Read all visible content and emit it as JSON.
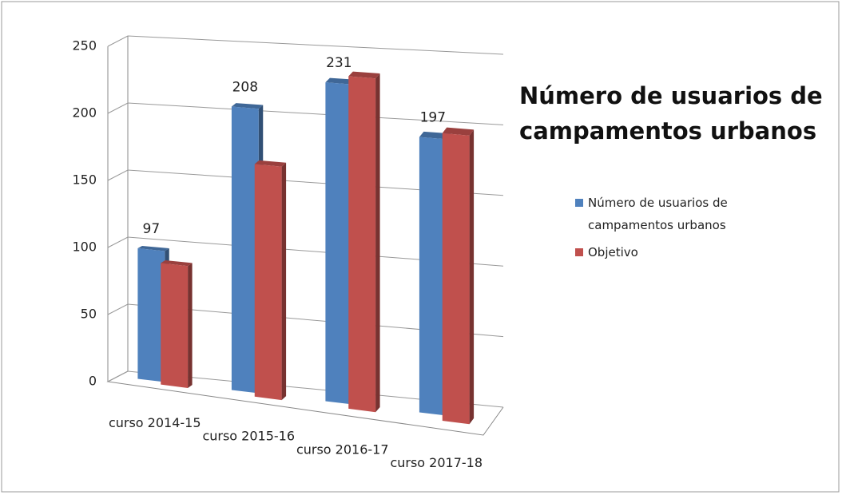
{
  "chart_data": {
    "type": "bar3d",
    "title": "Número de usuarios de campamentos urbanos",
    "categories": [
      "curso 2014-15",
      "curso 2015-16",
      "curso 2016-17",
      "curso 2017-18"
    ],
    "series": [
      {
        "name": "Número de usuarios de campamentos urbanos",
        "color": "#4f81bd",
        "values": [
          97,
          208,
          231,
          197
        ]
      },
      {
        "name": "Objetivo",
        "color": "#c0504d",
        "values": [
          90,
          170,
          240,
          205
        ]
      }
    ],
    "ylim": [
      0,
      250
    ],
    "yticks": [
      0,
      50,
      100,
      150,
      200,
      250
    ],
    "grid": true,
    "legend": "right"
  }
}
